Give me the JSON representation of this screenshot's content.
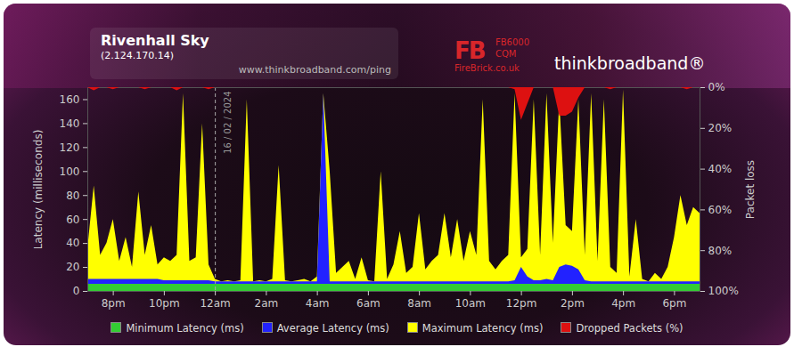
{
  "chart_data": {
    "type": "area",
    "title": "Rivenhall Sky",
    "subtitle": "(2.124.170.14)",
    "url": "www.thinkbroadband.com/ping",
    "logos": [
      "FB",
      "FB6000",
      "CQM",
      "FireBrick.co.uk",
      "thinkbroadband®"
    ],
    "y_label": "Latency (milliseconds)",
    "y2_label": "Packet loss",
    "annotations": [
      {
        "x": 0,
        "text": "16 / 02 / 2024"
      }
    ],
    "grid": false,
    "legend": "bottom",
    "xlim": [
      -5,
      19
    ],
    "xticks": [
      {
        "value": -4,
        "label": "8pm"
      },
      {
        "value": -2,
        "label": "10pm"
      },
      {
        "value": 0,
        "label": "12am"
      },
      {
        "value": 2,
        "label": "2am"
      },
      {
        "value": 4,
        "label": "4am"
      },
      {
        "value": 6,
        "label": "6am"
      },
      {
        "value": 8,
        "label": "8am"
      },
      {
        "value": 10,
        "label": "10am"
      },
      {
        "value": 12,
        "label": "12pm"
      },
      {
        "value": 14,
        "label": "2pm"
      },
      {
        "value": 16,
        "label": "4pm"
      },
      {
        "value": 18,
        "label": "6pm"
      }
    ],
    "ylim": [
      0,
      170
    ],
    "yticks": [
      0,
      20,
      40,
      60,
      80,
      100,
      120,
      140,
      160
    ],
    "y2lim": [
      100,
      0
    ],
    "y2ticks": [
      {
        "value": 0,
        "label": "0%"
      },
      {
        "value": 20,
        "label": "20%"
      },
      {
        "value": 40,
        "label": "40%"
      },
      {
        "value": 60,
        "label": "60%"
      },
      {
        "value": 80,
        "label": "80%"
      },
      {
        "value": 100,
        "label": "100%"
      }
    ],
    "x": [
      -5,
      -4.75,
      -4.5,
      -4.25,
      -4,
      -3.75,
      -3.5,
      -3.25,
      -3,
      -2.75,
      -2.5,
      -2.25,
      -2,
      -1.75,
      -1.5,
      -1.25,
      -1,
      -0.75,
      -0.5,
      -0.25,
      0,
      0.25,
      0.5,
      0.75,
      1,
      1.25,
      1.5,
      1.75,
      2,
      2.25,
      2.5,
      2.75,
      3,
      3.25,
      3.5,
      3.75,
      4,
      4.25,
      4.5,
      4.75,
      5,
      5.25,
      5.5,
      5.75,
      6,
      6.25,
      6.5,
      6.75,
      7,
      7.25,
      7.5,
      7.75,
      8,
      8.25,
      8.5,
      8.75,
      9,
      9.25,
      9.5,
      9.75,
      10,
      10.25,
      10.5,
      10.75,
      11,
      11.25,
      11.5,
      11.75,
      12,
      12.25,
      12.5,
      12.75,
      13,
      13.25,
      13.5,
      13.75,
      14,
      14.25,
      14.5,
      14.75,
      15,
      15.25,
      15.5,
      15.75,
      16,
      16.25,
      16.5,
      16.75,
      17,
      17.25,
      17.5,
      17.75,
      18,
      18.25,
      18.5,
      18.75,
      19
    ],
    "series": [
      {
        "name": "Minimum Latency (ms)",
        "color": "#33cc33",
        "type": "area",
        "values": [
          6,
          6,
          6,
          6,
          6,
          6,
          6,
          6,
          6,
          6,
          6,
          6,
          6,
          6,
          6,
          6,
          6,
          6,
          6,
          6,
          6,
          6,
          6,
          6,
          6,
          6,
          6,
          6,
          6,
          6,
          6,
          6,
          6,
          6,
          6,
          6,
          6,
          6,
          6,
          6,
          6,
          6,
          6,
          6,
          6,
          6,
          6,
          6,
          6,
          6,
          6,
          6,
          6,
          6,
          6,
          6,
          6,
          6,
          6,
          6,
          6,
          6,
          6,
          6,
          6,
          6,
          6,
          6,
          6,
          6,
          6,
          6,
          6,
          6,
          6,
          6,
          6,
          6,
          6,
          6,
          6,
          6,
          6,
          6,
          6,
          6,
          6,
          6,
          6,
          6,
          6,
          6,
          6,
          6,
          6,
          6,
          6
        ]
      },
      {
        "name": "Average Latency (ms)",
        "color": "#2222ff",
        "type": "area",
        "values": [
          10,
          10,
          10,
          10,
          10,
          10,
          10,
          10,
          10,
          10,
          10,
          10,
          9,
          9,
          9,
          9,
          9,
          9,
          9,
          9,
          8,
          8,
          8,
          8,
          8,
          8,
          8,
          8,
          8,
          8,
          8,
          8,
          8,
          8,
          8,
          8,
          8,
          165,
          8,
          8,
          8,
          8,
          8,
          8,
          8,
          8,
          8,
          8,
          8,
          8,
          8,
          8,
          8,
          8,
          8,
          8,
          8,
          8,
          8,
          8,
          8,
          8,
          8,
          8,
          8,
          8,
          8,
          9,
          20,
          12,
          9,
          9,
          10,
          9,
          20,
          22,
          21,
          18,
          9,
          8,
          8,
          8,
          8,
          8,
          8,
          8,
          8,
          8,
          8,
          8,
          8,
          8,
          8,
          8,
          8,
          8,
          8
        ]
      },
      {
        "name": "Maximum Latency (ms)",
        "color": "#ffff00",
        "type": "area",
        "values": [
          35,
          88,
          30,
          40,
          60,
          25,
          45,
          20,
          83,
          30,
          55,
          22,
          28,
          25,
          30,
          165,
          25,
          28,
          140,
          22,
          10,
          8,
          9,
          8,
          9,
          160,
          8,
          9,
          8,
          10,
          105,
          9,
          8,
          9,
          10,
          8,
          12,
          165,
          100,
          15,
          20,
          25,
          10,
          28,
          9,
          8,
          100,
          10,
          22,
          50,
          15,
          20,
          65,
          18,
          25,
          30,
          65,
          28,
          60,
          25,
          50,
          30,
          160,
          25,
          18,
          25,
          30,
          165,
          28,
          35,
          160,
          30,
          165,
          40,
          160,
          55,
          50,
          160,
          30,
          165,
          25,
          160,
          20,
          15,
          168,
          12,
          60,
          10,
          8,
          15,
          10,
          20,
          45,
          80,
          55,
          70,
          65
        ]
      },
      {
        "name": "Dropped Packets (%)",
        "color": "#dd1111",
        "type": "area",
        "axis": "y2",
        "values": [
          0,
          1.5,
          0,
          0,
          1,
          0,
          0,
          0,
          0,
          1,
          0,
          0,
          0,
          0,
          1.5,
          0,
          0,
          0,
          0,
          1,
          0,
          0,
          0,
          0,
          0,
          0,
          0,
          0,
          0,
          0,
          0,
          0,
          0,
          0,
          0,
          0,
          0,
          0,
          0,
          0,
          0,
          0,
          0,
          0,
          0,
          0,
          0,
          0,
          0,
          0,
          0,
          0,
          0,
          0,
          0,
          0,
          0,
          0,
          0,
          0,
          0,
          0,
          0,
          0,
          0,
          0,
          0,
          1,
          16,
          8,
          0,
          0,
          0,
          0,
          14,
          14,
          12,
          5,
          0,
          0,
          0,
          0,
          1,
          0,
          0,
          0,
          0,
          0,
          0,
          0,
          0,
          0,
          0,
          0,
          1,
          0,
          0
        ]
      }
    ]
  }
}
